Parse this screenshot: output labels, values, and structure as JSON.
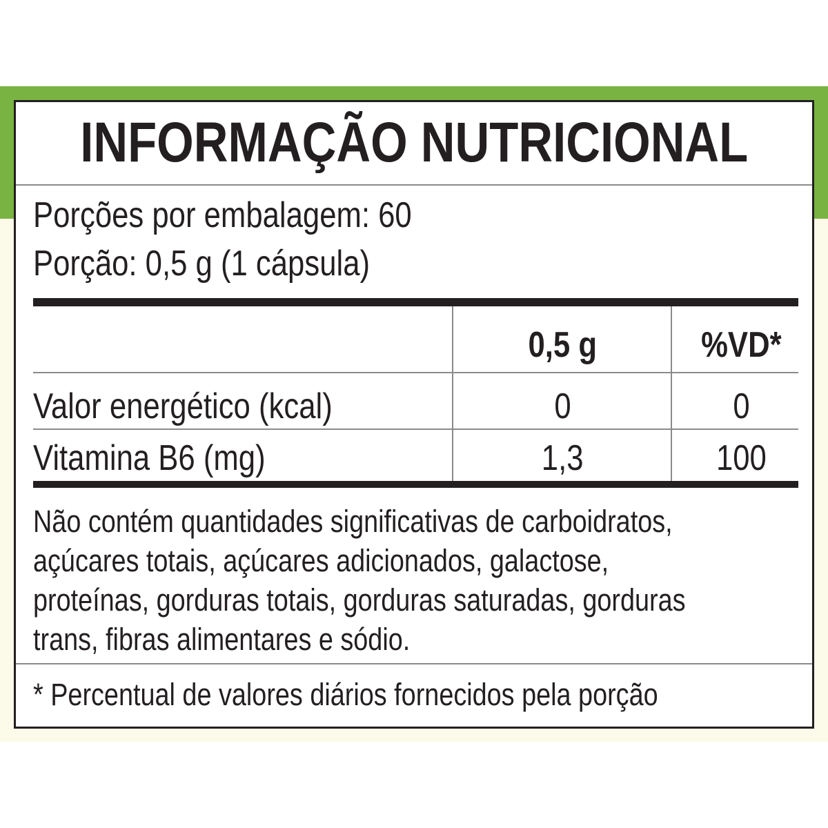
{
  "header": {
    "title": "INFORMAÇÃO NUTRICIONAL",
    "servings_per_package": "Porções por embalagem: 60",
    "serving_size": "Porção: 0,5 g (1 cápsula)"
  },
  "table": {
    "columns": [
      "0,5 g",
      "%VD*"
    ],
    "rows": [
      [
        "Valor energético (kcal)",
        "0",
        "0"
      ],
      [
        "Vitamina B6 (mg)",
        "1,3",
        "100"
      ]
    ]
  },
  "note_lines": [
    "Não contém quantidades significativas de carboidratos,",
    "açúcares totais, açúcares adicionados, galactose,",
    "proteínas, gorduras totais, gorduras saturadas, gorduras",
    "trans, fibras alimentares e sódio."
  ],
  "footnote": "* Percentual de valores diários fornecidos pela porção"
}
